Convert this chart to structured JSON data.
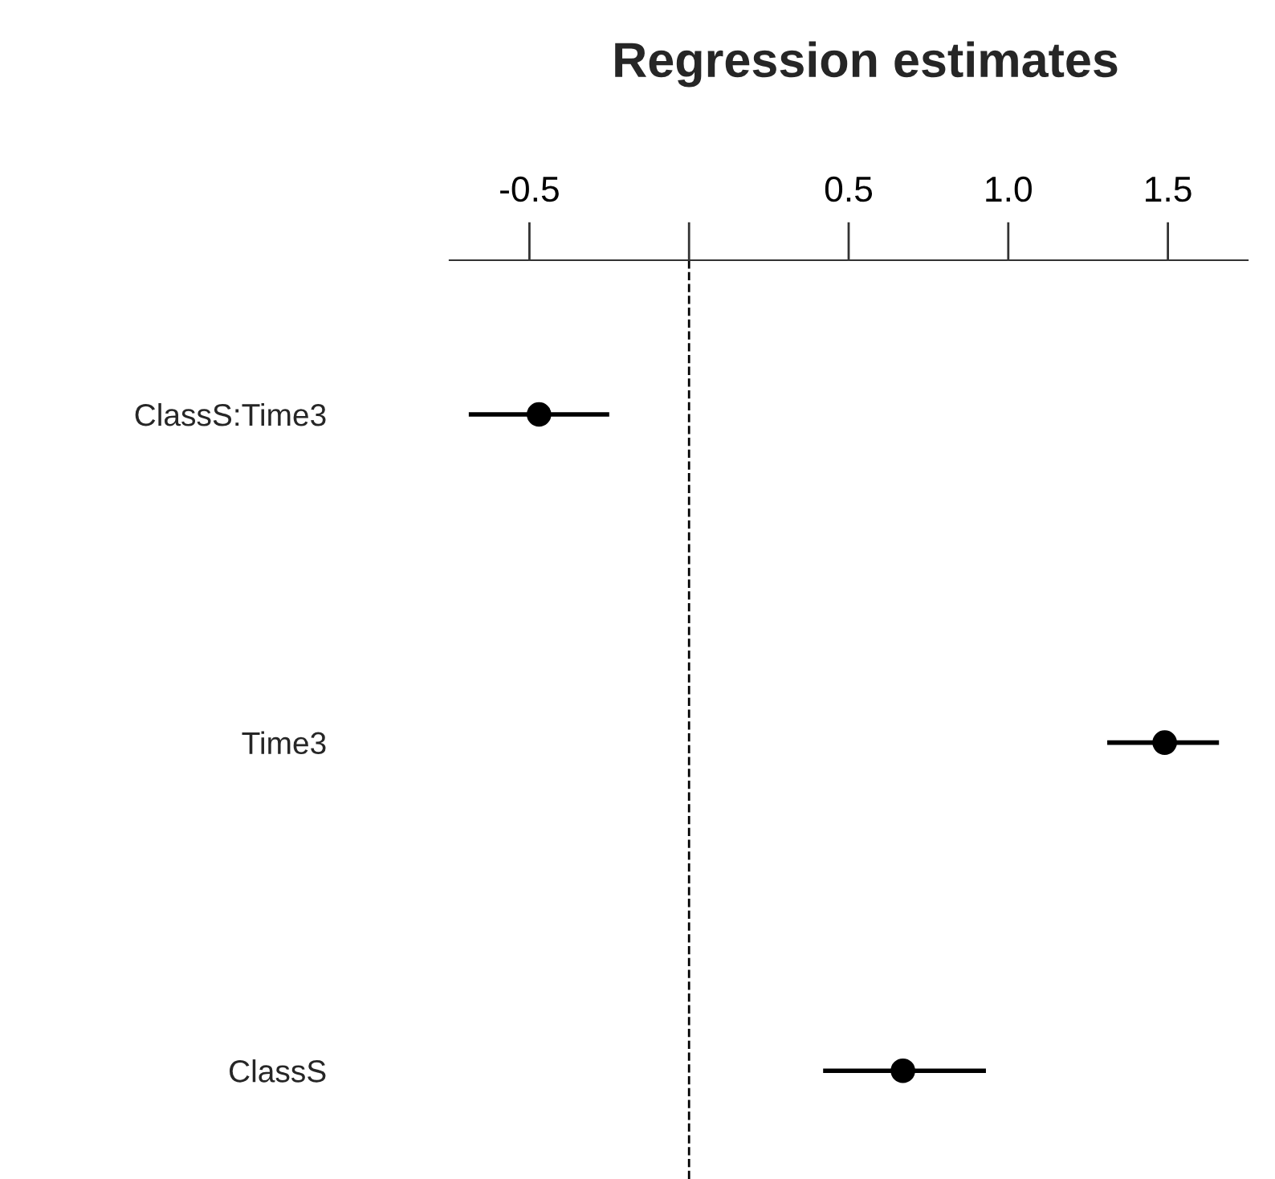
{
  "chart_data": {
    "type": "scatter",
    "orientation": "horizontal",
    "title": "Regression estimates",
    "categories": [
      "ClassS:Time3",
      "Time3",
      "ClassS"
    ],
    "values": [
      -0.47,
      1.49,
      0.67
    ],
    "errors": [
      [
        -0.69,
        -0.25
      ],
      [
        1.31,
        1.66
      ],
      [
        0.42,
        0.93
      ]
    ],
    "color": "#000000",
    "marker": "circle",
    "xlim": [
      -0.75,
      1.75
    ],
    "xticks": [
      -0.5,
      {
        "value": 0,
        "label": null
      },
      0.5,
      {
        "value": 1.0,
        "label": "1.0"
      },
      1.5
    ],
    "ref_lines": [
      {
        "axis": "x",
        "value": 0,
        "line_style": "dashed",
        "color": "#000000"
      }
    ],
    "grid": false,
    "legend": false
  }
}
